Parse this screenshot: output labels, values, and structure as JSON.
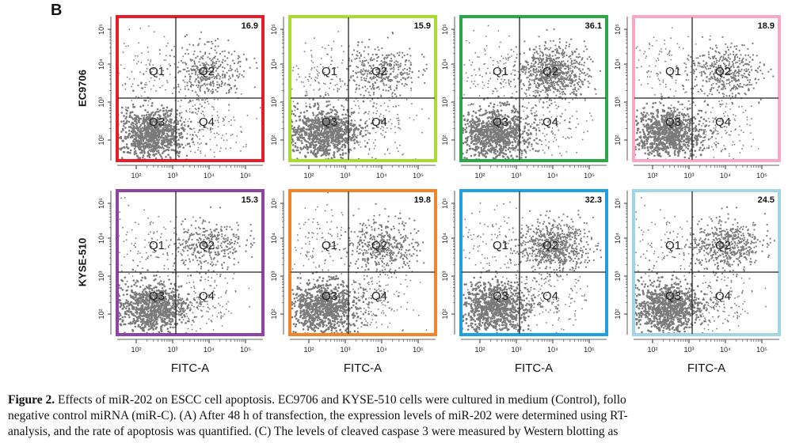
{
  "panel_label": "B",
  "row_labels": [
    "EC9706",
    "KYSE-510"
  ],
  "x_axis_label": "FITC-A",
  "x_tick_labels": [
    "10²",
    "10³",
    "10⁴",
    "10⁵"
  ],
  "y_tick_labels": [
    "10²",
    "10³",
    "10⁴",
    "10⁵"
  ],
  "quadrant_labels": [
    "Q1",
    "Q2",
    "Q3",
    "Q4"
  ],
  "colors": {
    "scatter": "#7a7a7a",
    "frames": [
      "#e41e26",
      "#a8db2c",
      "#2aa845",
      "#f5a9c6",
      "#8e44a4",
      "#f2852a",
      "#1da1e0",
      "#9fd6e6"
    ]
  },
  "chart_data": [
    {
      "type": "scatter",
      "row": "EC9706",
      "q2_percent": 16.9,
      "q2_label": "16.9"
    },
    {
      "type": "scatter",
      "row": "EC9706",
      "q2_percent": 15.9,
      "q2_label": "15.9"
    },
    {
      "type": "scatter",
      "row": "EC9706",
      "q2_percent": 36.1,
      "q2_label": "36.1"
    },
    {
      "type": "scatter",
      "row": "EC9706",
      "q2_percent": 18.9,
      "q2_label": "18.9"
    },
    {
      "type": "scatter",
      "row": "KYSE-510",
      "q2_percent": 15.3,
      "q2_label": "15.3"
    },
    {
      "type": "scatter",
      "row": "KYSE-510",
      "q2_percent": 19.8,
      "q2_label": "19.8"
    },
    {
      "type": "scatter",
      "row": "KYSE-510",
      "q2_percent": 32.3,
      "q2_label": "32.3"
    },
    {
      "type": "scatter",
      "row": "KYSE-510",
      "q2_percent": 24.5,
      "q2_label": "24.5"
    }
  ],
  "caption": {
    "figure_label": "Figure 2.",
    "line1": " Effects of miR-202 on ESCC cell apoptosis. EC9706 and KYSE-510 cells were cultured in medium (Control), follo",
    "line2": "negative control miRNA (miR-C). (A) After 48 h of transfection, the expression levels of miR-202 were determined using RT-",
    "line3": "analysis, and the rate of apoptosis was quantified. (C) The levels of cleaved caspase 3 were measured by Western blotting as"
  }
}
